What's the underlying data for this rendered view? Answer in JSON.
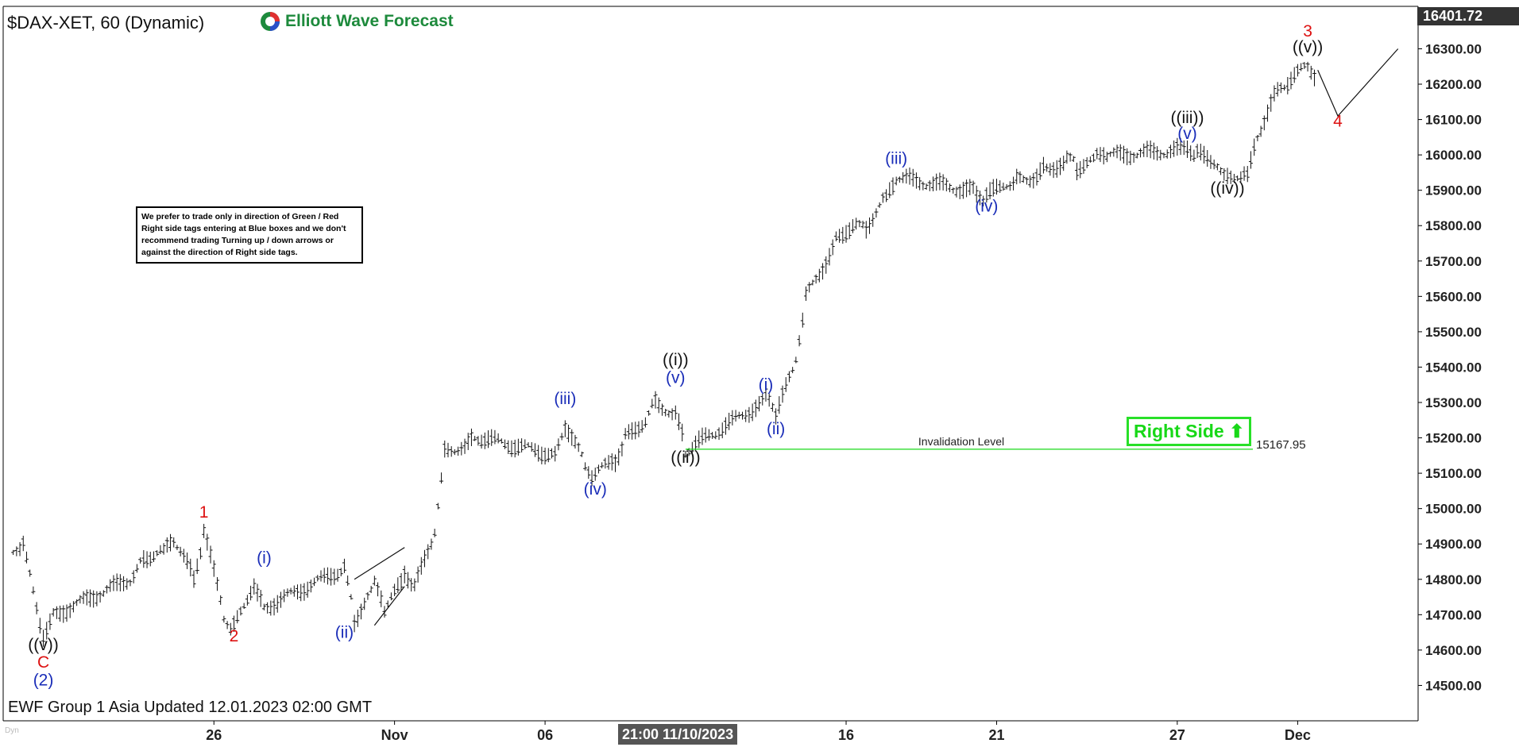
{
  "header": {
    "title": "$DAX-XET, 60 (Dynamic)",
    "logo_text": "Elliott Wave Forecast",
    "logo_icon": "elliott-wave-logo-icon"
  },
  "disclaimer": "We prefer to trade only in direction of Green / Red Right side tags entering at Blue boxes and we don't recommend trading Turning up / down arrows or against the direction of Right side tags.",
  "footer": {
    "updated": "EWF Group 1 Asia Updated 12.01.2023 02:00 GMT",
    "watermark": "Dyn"
  },
  "right_side_tag": {
    "label": "Right Side",
    "icon": "up-arrow-icon",
    "color": "#18d818"
  },
  "invalidation": {
    "label": "Invalidation Level",
    "value_text": "15167.95"
  },
  "last_price": "16401.72",
  "x_highlight": "21:00 11/10/2023",
  "colors": {
    "black": "#111111",
    "blue": "#1a2db8",
    "red": "#dd1111",
    "green": "#18d818"
  },
  "chart_data": {
    "type": "bar",
    "title": "$DAX-XET, 60 (Dynamic)",
    "ylim": [
      14400,
      16420
    ],
    "y_ticks": [
      14500,
      14600,
      14700,
      14800,
      14900,
      15000,
      15100,
      15200,
      15300,
      15400,
      15500,
      15600,
      15700,
      15800,
      15900,
      16000,
      16100,
      16200,
      16300
    ],
    "y_tick_labels": [
      "14500.00",
      "14600.00",
      "14700.00",
      "14800.00",
      "14900.00",
      "15000.00",
      "15100.00",
      "15200.00",
      "15300.00",
      "15400.00",
      "15500.00",
      "15600.00",
      "15700.00",
      "15800.00",
      "15900.00",
      "16000.00",
      "16100.00",
      "16200.00",
      "16300.00"
    ],
    "x_range": [
      "2023-10-19",
      "2023-12-05"
    ],
    "x_ticks": [
      {
        "date": "2023-10-26",
        "label": "26"
      },
      {
        "date": "2023-11-01",
        "label": "Nov"
      },
      {
        "date": "2023-11-06",
        "label": "06"
      },
      {
        "date": "2023-11-16",
        "label": "16"
      },
      {
        "date": "2023-11-21",
        "label": "21"
      },
      {
        "date": "2023-11-27",
        "label": "27"
      },
      {
        "date": "2023-12-01",
        "label": "Dec"
      }
    ],
    "price_path": [
      [
        "2023-10-19T08:00",
        14870
      ],
      [
        "2023-10-19T16:00",
        14900
      ],
      [
        "2023-10-20T08:00",
        14640
      ],
      [
        "2023-10-20T16:00",
        14700
      ],
      [
        "2023-10-23T08:00",
        14810
      ],
      [
        "2023-10-23T16:00",
        14860
      ],
      [
        "2023-10-24T08:00",
        14880
      ],
      [
        "2023-10-24T16:00",
        14910
      ],
      [
        "2023-10-25T08:00",
        14800
      ],
      [
        "2023-10-25T16:00",
        14930
      ],
      [
        "2023-10-26T08:00",
        14700
      ],
      [
        "2023-10-26T16:00",
        14660
      ],
      [
        "2023-10-27T08:00",
        14790
      ],
      [
        "2023-10-27T16:00",
        14720
      ],
      [
        "2023-10-30T08:00",
        14830
      ],
      [
        "2023-10-30T16:00",
        14690
      ],
      [
        "2023-10-31T08:00",
        14780
      ],
      [
        "2023-10-31T16:00",
        14720
      ],
      [
        "2023-11-01T08:00",
        14810
      ],
      [
        "2023-11-01T16:00",
        14780
      ],
      [
        "2023-11-02T08:00",
        14940
      ],
      [
        "2023-11-02T16:00",
        15160
      ],
      [
        "2023-11-03T08:00",
        15180
      ],
      [
        "2023-11-03T16:00",
        15200
      ],
      [
        "2023-11-06T08:00",
        15150
      ],
      [
        "2023-11-06T16:00",
        15230
      ],
      [
        "2023-11-07T08:00",
        15120
      ],
      [
        "2023-11-07T16:00",
        15090
      ],
      [
        "2023-11-08T08:00",
        15140
      ],
      [
        "2023-11-08T16:00",
        15200
      ],
      [
        "2023-11-09T08:00",
        15250
      ],
      [
        "2023-11-09T16:00",
        15310
      ],
      [
        "2023-11-10T08:00",
        15260
      ],
      [
        "2023-11-10T16:00",
        15170
      ],
      [
        "2023-11-13T08:00",
        15310
      ],
      [
        "2023-11-13T16:00",
        15270
      ],
      [
        "2023-11-14T08:00",
        15420
      ],
      [
        "2023-11-14T16:00",
        15600
      ],
      [
        "2023-11-15T08:00",
        15700
      ],
      [
        "2023-11-15T16:00",
        15760
      ],
      [
        "2023-11-16T08:00",
        15810
      ],
      [
        "2023-11-16T16:00",
        15790
      ],
      [
        "2023-11-17T08:00",
        15880
      ],
      [
        "2023-11-17T16:00",
        15930
      ],
      [
        "2023-11-20T08:00",
        15890
      ],
      [
        "2023-11-20T16:00",
        15880
      ],
      [
        "2023-11-21T08:00",
        15920
      ],
      [
        "2023-11-21T16:00",
        15930
      ],
      [
        "2023-11-22T08:00",
        15940
      ],
      [
        "2023-11-22T16:00",
        15970
      ],
      [
        "2023-11-23T08:00",
        15980
      ],
      [
        "2023-11-23T16:00",
        15970
      ],
      [
        "2023-11-24T08:00",
        15990
      ],
      [
        "2023-11-24T16:00",
        16000
      ],
      [
        "2023-11-27T08:00",
        16020
      ],
      [
        "2023-11-27T16:00",
        16000
      ],
      [
        "2023-11-28T08:00",
        15980
      ],
      [
        "2023-11-28T16:00",
        15930
      ],
      [
        "2023-11-29T08:00",
        15950
      ],
      [
        "2023-11-29T16:00",
        16050
      ],
      [
        "2023-11-30T08:00",
        16180
      ],
      [
        "2023-11-30T16:00",
        16200
      ],
      [
        "2023-12-01T08:00",
        16250
      ],
      [
        "2023-12-01T16:00",
        16220
      ]
    ],
    "wave_labels": [
      {
        "text": "((v))",
        "date": "2023-10-20T08:00",
        "price": 14600,
        "color": "black"
      },
      {
        "text": "C",
        "date": "2023-10-20T08:00",
        "price": 14550,
        "color": "red"
      },
      {
        "text": "(2)",
        "date": "2023-10-20T08:00",
        "price": 14500,
        "color": "blue"
      },
      {
        "text": "1",
        "date": "2023-10-25T16:00",
        "price": 14975,
        "color": "red"
      },
      {
        "text": "2",
        "date": "2023-10-26T16:00",
        "price": 14625,
        "color": "red"
      },
      {
        "text": "(i)",
        "date": "2023-10-27T16:00",
        "price": 14845,
        "color": "blue"
      },
      {
        "text": "(ii)",
        "date": "2023-10-30T08:00",
        "price": 14635,
        "color": "blue"
      },
      {
        "text": "(iii)",
        "date": "2023-11-06T16:00",
        "price": 15295,
        "color": "blue"
      },
      {
        "text": "(iv)",
        "date": "2023-11-07T16:00",
        "price": 15040,
        "color": "blue"
      },
      {
        "text": "((i))",
        "date": "2023-11-10T08:00",
        "price": 15405,
        "color": "black"
      },
      {
        "text": "(v)",
        "date": "2023-11-10T08:00",
        "price": 15355,
        "color": "blue"
      },
      {
        "text": "((ii))",
        "date": "2023-11-10T16:00",
        "price": 15130,
        "color": "black"
      },
      {
        "text": "(i)",
        "date": "2023-11-13T08:00",
        "price": 15335,
        "color": "blue"
      },
      {
        "text": "(ii)",
        "date": "2023-11-13T16:00",
        "price": 15210,
        "color": "blue"
      },
      {
        "text": "(iii)",
        "date": "2023-11-17T16:00",
        "price": 15975,
        "color": "blue"
      },
      {
        "text": "(iv)",
        "date": "2023-11-20T16:00",
        "price": 15840,
        "color": "blue"
      },
      {
        "text": "((iii))",
        "date": "2023-11-27T08:00",
        "price": 16090,
        "color": "black"
      },
      {
        "text": "(v)",
        "date": "2023-11-27T08:00",
        "price": 16045,
        "color": "blue"
      },
      {
        "text": "((iv))",
        "date": "2023-11-28T16:00",
        "price": 15890,
        "color": "black"
      },
      {
        "text": "3",
        "date": "2023-12-01T08:00",
        "price": 16335,
        "color": "red"
      },
      {
        "text": "((v))",
        "date": "2023-12-01T08:00",
        "price": 16290,
        "color": "black"
      },
      {
        "text": "4",
        "date": "2023-12-02T08:00",
        "price": 16080,
        "color": "red"
      }
    ],
    "projection": [
      [
        "2023-12-01T16:00",
        16240
      ],
      [
        "2023-12-02T08:00",
        16110
      ],
      [
        "2023-12-04T08:00",
        16300
      ]
    ],
    "triangle": {
      "upper": [
        [
          "2023-10-30T16:00",
          14800
        ],
        [
          "2023-11-01T08:00",
          14890
        ]
      ],
      "lower": [
        [
          "2023-10-31T08:00",
          14670
        ],
        [
          "2023-11-01T08:00",
          14780
        ]
      ]
    },
    "invalidation_level": 15167.95,
    "grid": false
  }
}
